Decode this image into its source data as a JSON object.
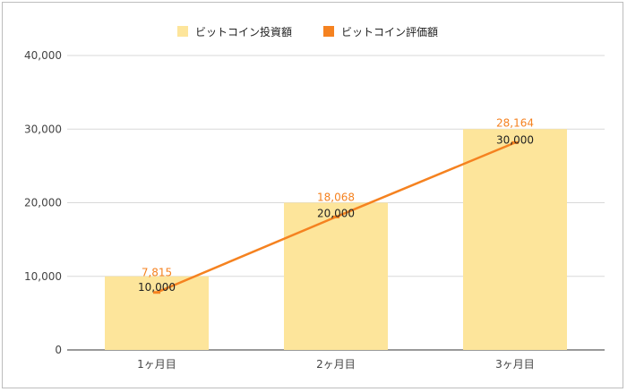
{
  "chart_data": {
    "type": "bar",
    "categories": [
      "1ヶ月目",
      "2ヶ月目",
      "3ヶ月目"
    ],
    "series": [
      {
        "name": "ビットコイン投資額",
        "kind": "bar",
        "values": [
          10000,
          20000,
          30000
        ],
        "labels": [
          "10,000",
          "20,000",
          "30,000"
        ],
        "color": "#fde59b"
      },
      {
        "name": "ビットコイン評価額",
        "kind": "line",
        "values": [
          7815,
          18068,
          28164
        ],
        "labels": [
          "7,815",
          "18,068",
          "28,164"
        ],
        "color": "#f58220"
      }
    ],
    "yticks": [
      "0",
      "10,000",
      "20,000",
      "30,000",
      "40,000"
    ],
    "ylim": [
      0,
      40000
    ],
    "grid": true,
    "legend_position": "top"
  }
}
